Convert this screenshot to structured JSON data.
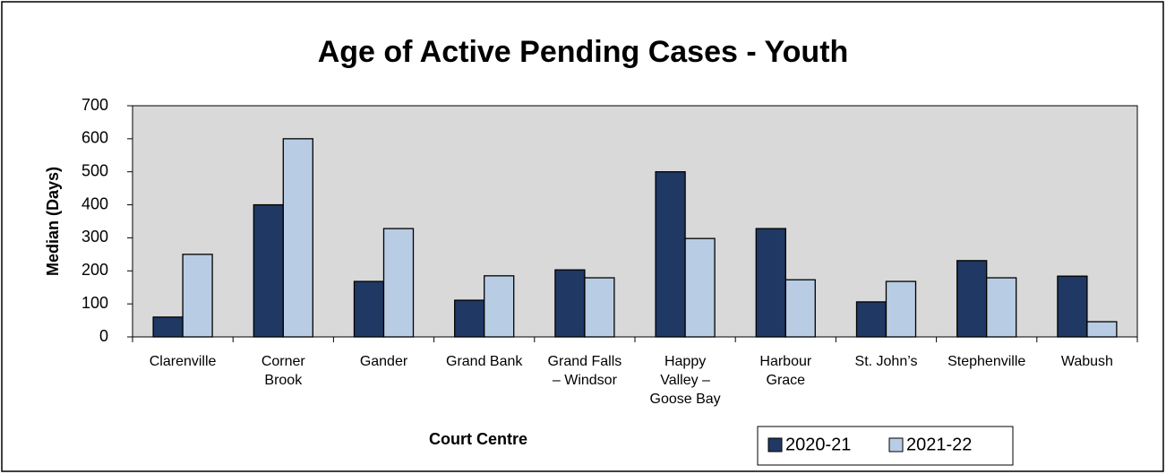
{
  "chart_data": {
    "type": "bar",
    "title": "Age of Active Pending Cases - Youth",
    "x_label": "Court Centre",
    "y_label": "Median (Days)",
    "categories": [
      "Clarenville",
      "Corner\nBrook",
      "Gander",
      "Grand Bank",
      "Grand Falls\n–  Windsor",
      "Happy\nValley –\nGoose Bay",
      "Harbour\nGrace",
      "St. John’s",
      "Stephenville",
      "Wabush"
    ],
    "series": [
      {
        "name": "2020-21",
        "color": "#1f3864",
        "values": [
          60,
          400,
          168,
          111,
          203,
          500,
          328,
          106,
          231,
          184
        ]
      },
      {
        "name": "2021-22",
        "color": "#b8cce4",
        "values": [
          250,
          600,
          328,
          185,
          179,
          298,
          173,
          168,
          179,
          46
        ]
      }
    ],
    "ylim": [
      0,
      700
    ],
    "yticks": [
      0,
      100,
      200,
      300,
      400,
      500,
      600,
      700
    ],
    "grid": false,
    "legend": "bottom-right"
  }
}
